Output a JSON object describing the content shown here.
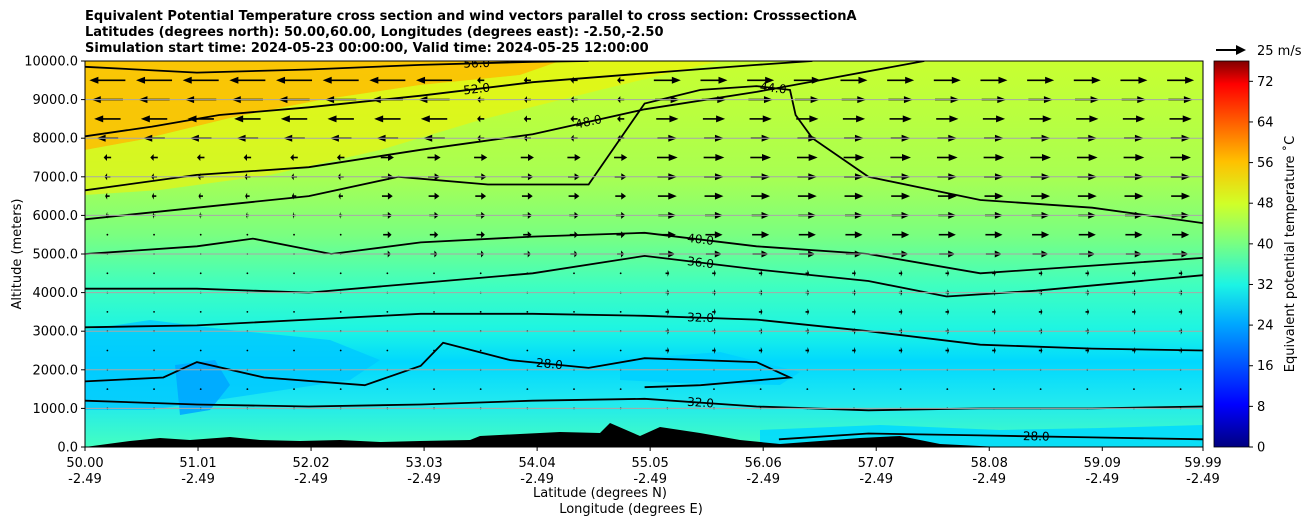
{
  "title_lines": [
    "Equivalent Potential Temperature cross section and wind vectors parallel to cross section: CrosssectionA",
    "Latitudes (degrees north): 50.00,60.00, Longitudes (degrees east): -2.50,-2.50",
    "Simulation start time: 2024-05-23 00:00:00, Valid time: 2024-05-25 12:00:00"
  ],
  "chart_data": {
    "type": "contourf",
    "x_label_lat": "Latitude (degrees N)",
    "x_label_lon": "Longitude (degrees E)",
    "ylabel": "Altitude (meters)",
    "xlim": [
      50.0,
      59.99
    ],
    "ylim": [
      0,
      10000
    ],
    "x_ticks": [
      {
        "lat": "50.00",
        "lon": "-2.49",
        "value": 50.0
      },
      {
        "lat": "51.01",
        "lon": "-2.49",
        "value": 51.01
      },
      {
        "lat": "52.02",
        "lon": "-2.49",
        "value": 52.02
      },
      {
        "lat": "53.03",
        "lon": "-2.49",
        "value": 53.03
      },
      {
        "lat": "54.04",
        "lon": "-2.49",
        "value": 54.04
      },
      {
        "lat": "55.05",
        "lon": "-2.49",
        "value": 55.05
      },
      {
        "lat": "56.06",
        "lon": "-2.49",
        "value": 56.06
      },
      {
        "lat": "57.07",
        "lon": "-2.49",
        "value": 57.07
      },
      {
        "lat": "58.08",
        "lon": "-2.49",
        "value": 58.08
      },
      {
        "lat": "59.09",
        "lon": "-2.49",
        "value": 59.09
      },
      {
        "lat": "59.99",
        "lon": "-2.49",
        "value": 59.99
      }
    ],
    "y_ticks": [
      {
        "label": "0.0",
        "value": 0
      },
      {
        "label": "1000.0",
        "value": 1000
      },
      {
        "label": "2000.0",
        "value": 2000
      },
      {
        "label": "3000.0",
        "value": 3000
      },
      {
        "label": "4000.0",
        "value": 4000
      },
      {
        "label": "5000.0",
        "value": 5000
      },
      {
        "label": "6000.0",
        "value": 6000
      },
      {
        "label": "7000.0",
        "value": 7000
      },
      {
        "label": "8000.0",
        "value": 8000
      },
      {
        "label": "9000.0",
        "value": 9000
      },
      {
        "label": "10000.0",
        "value": 10000
      }
    ],
    "colorbar": {
      "label": "Equivalent potential temperature ˚C",
      "min": 0,
      "max": 76,
      "ticks": [
        "0",
        "8",
        "16",
        "24",
        "32",
        "40",
        "48",
        "56",
        "64",
        "72"
      ],
      "tick_values": [
        0,
        8,
        16,
        24,
        32,
        40,
        48,
        56,
        64,
        72
      ]
    },
    "wind_key": {
      "label": "25 m/s",
      "speed": 25
    },
    "contour_lines": [
      {
        "value": 56,
        "label": "56.0",
        "points": [
          [
            50.0,
            9850
          ],
          [
            51.0,
            9700
          ],
          [
            52.0,
            9780
          ],
          [
            53.0,
            9900
          ],
          [
            54.0,
            9980
          ],
          [
            54.5,
            10000
          ]
        ]
      },
      {
        "value": 52,
        "label": "52.0",
        "points": [
          [
            50.0,
            8050
          ],
          [
            50.6,
            8300
          ],
          [
            51.2,
            8600
          ],
          [
            52.0,
            8800
          ],
          [
            53.0,
            9100
          ],
          [
            54.0,
            9450
          ],
          [
            55.0,
            9680
          ],
          [
            56.0,
            9900
          ],
          [
            56.5,
            10000
          ]
        ]
      },
      {
        "value": 48,
        "label": "48.0",
        "points": [
          [
            50.0,
            6650
          ],
          [
            51.0,
            7050
          ],
          [
            52.0,
            7250
          ],
          [
            53.0,
            7700
          ],
          [
            54.0,
            8100
          ],
          [
            55.0,
            8750
          ],
          [
            56.0,
            9200
          ],
          [
            57.5,
            10000
          ]
        ]
      },
      {
        "value": 44,
        "label": "44.0",
        "points": [
          [
            50.0,
            5900
          ],
          [
            51.0,
            6200
          ],
          [
            52.0,
            6500
          ],
          [
            52.8,
            7000
          ],
          [
            53.6,
            6800
          ],
          [
            54.5,
            6800
          ],
          [
            55.0,
            8900
          ],
          [
            55.5,
            9250
          ],
          [
            56.0,
            9350
          ],
          [
            56.3,
            9250
          ],
          [
            56.35,
            8600
          ],
          [
            56.5,
            8000
          ],
          [
            57.0,
            7000
          ],
          [
            58.0,
            6400
          ],
          [
            59.0,
            6200
          ],
          [
            59.99,
            5800
          ]
        ]
      },
      {
        "value": 40,
        "label": "40.0",
        "points": [
          [
            50.0,
            5000
          ],
          [
            51.0,
            5200
          ],
          [
            51.5,
            5400
          ],
          [
            52.2,
            5000
          ],
          [
            53.0,
            5300
          ],
          [
            54.0,
            5450
          ],
          [
            55.0,
            5550
          ],
          [
            56.0,
            5200
          ],
          [
            57.0,
            5000
          ],
          [
            58.0,
            4500
          ],
          [
            59.0,
            4700
          ],
          [
            59.99,
            4900
          ]
        ]
      },
      {
        "value": 36,
        "label": "36.0",
        "points": [
          [
            50.0,
            4100
          ],
          [
            51.0,
            4100
          ],
          [
            52.0,
            4000
          ],
          [
            53.0,
            4250
          ],
          [
            54.0,
            4500
          ],
          [
            55.0,
            4950
          ],
          [
            56.0,
            4600
          ],
          [
            57.0,
            4300
          ],
          [
            57.7,
            3900
          ],
          [
            58.5,
            4050
          ],
          [
            59.99,
            4450
          ]
        ]
      },
      {
        "value": 32,
        "label": "32.0",
        "points": [
          [
            50.0,
            3100
          ],
          [
            51.0,
            3150
          ],
          [
            52.0,
            3300
          ],
          [
            53.0,
            3450
          ],
          [
            54.0,
            3450
          ],
          [
            55.0,
            3400
          ],
          [
            56.0,
            3300
          ],
          [
            57.0,
            3000
          ],
          [
            58.0,
            2650
          ],
          [
            59.0,
            2550
          ],
          [
            59.99,
            2500
          ]
        ]
      },
      {
        "value": 28,
        "label": "28.0",
        "points": [
          [
            50.0,
            1700
          ],
          [
            50.7,
            1800
          ],
          [
            51.0,
            2200
          ],
          [
            51.6,
            1800
          ],
          [
            52.5,
            1600
          ],
          [
            53.0,
            2100
          ],
          [
            53.2,
            2700
          ],
          [
            53.8,
            2250
          ],
          [
            54.5,
            2050
          ],
          [
            55.0,
            2300
          ],
          [
            56.0,
            2200
          ],
          [
            56.3,
            1800
          ],
          [
            55.5,
            1600
          ],
          [
            55.0,
            1550
          ]
        ]
      },
      {
        "value": 32,
        "label": "32.0",
        "points": [
          [
            50.0,
            1200
          ],
          [
            51.0,
            1100
          ],
          [
            52.0,
            1050
          ],
          [
            53.0,
            1100
          ],
          [
            54.0,
            1200
          ],
          [
            55.0,
            1250
          ],
          [
            56.0,
            1050
          ],
          [
            57.0,
            950
          ],
          [
            58.0,
            1000
          ],
          [
            59.0,
            1000
          ],
          [
            59.99,
            1050
          ]
        ]
      },
      {
        "value": 28,
        "label": "28.0",
        "points": [
          [
            56.2,
            200
          ],
          [
            57.0,
            350
          ],
          [
            58.0,
            300
          ],
          [
            59.0,
            250
          ],
          [
            59.99,
            200
          ]
        ]
      }
    ]
  }
}
